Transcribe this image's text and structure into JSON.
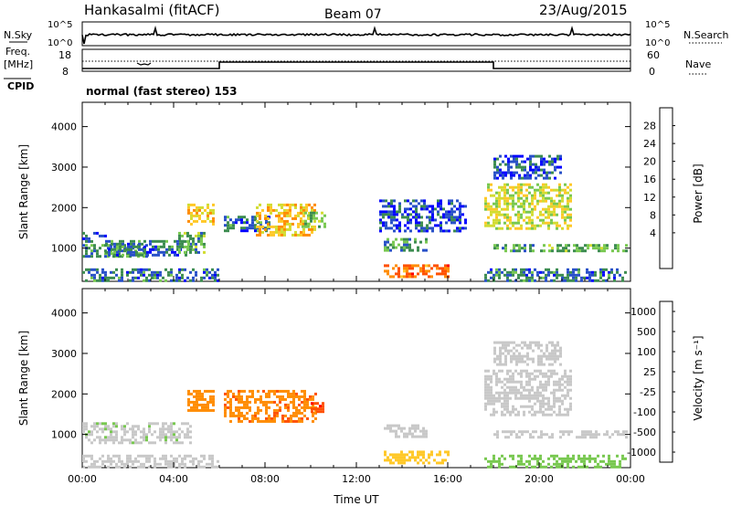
{
  "header": {
    "station": "Hankasalmi (fitACF)",
    "beam": "Beam 07",
    "date": "23/Aug/2015"
  },
  "strips": {
    "nsky_label": "N.Sky",
    "nsky_ticks": [
      "10^5",
      "10^0"
    ],
    "nsearch_label": "N.Search",
    "nsearch_ticks": [
      "10^5",
      "10^0"
    ],
    "freq_label_line1": "Freq.",
    "freq_label_line2": "[MHz]",
    "freq_ticks": [
      "18",
      "8"
    ],
    "nave_label": "Nave",
    "nave_ticks": [
      "60",
      "0"
    ],
    "cpid_label": "CPID",
    "cpid_text": "normal (fast stereo) 153"
  },
  "power_colorbar": {
    "label": "Power [dB]",
    "ticks": [
      "28",
      "24",
      "20",
      "16",
      "12",
      "8",
      "4"
    ],
    "colors": [
      "#0000ff",
      "#2850c8",
      "#3c8c50",
      "#78c850",
      "#d2dc32",
      "#ffc828",
      "#ff8c00",
      "#ff5000",
      "#ff0000"
    ]
  },
  "velocity_colorbar": {
    "label": "Velocity [m s⁻¹]",
    "ticks": [
      "1000",
      "500",
      "100",
      "25",
      "-25",
      "-100",
      "-500",
      "-1000"
    ],
    "colors": [
      "#2850c8",
      "#3c8c50",
      "#78c850",
      "#c8c8c8",
      "#ffc828",
      "#ff8c00",
      "#ff5000",
      "#ff0000"
    ]
  },
  "chart_data": [
    {
      "type": "heatmap",
      "panel": "power",
      "ylabel": "Slant Range [km]",
      "xlabel": "",
      "ylim": [
        180,
        4600
      ],
      "yticks": [
        1000,
        2000,
        3000,
        4000
      ],
      "xlim_hours": [
        0,
        24
      ],
      "regions": [
        {
          "t": [
            0.0,
            6.0
          ],
          "r": [
            180,
            500
          ],
          "value_db": 8
        },
        {
          "t": [
            0.0,
            2.8
          ],
          "r": [
            800,
            1100
          ],
          "value_db": 10
        },
        {
          "t": [
            0.0,
            1.0
          ],
          "r": [
            1150,
            1400
          ],
          "value_db": 6
        },
        {
          "t": [
            1.0,
            4.8
          ],
          "r": [
            800,
            1200
          ],
          "value_db": 8
        },
        {
          "t": [
            4.6,
            5.8
          ],
          "r": [
            1600,
            2100
          ],
          "value_db": 22
        },
        {
          "t": [
            4.2,
            5.4
          ],
          "r": [
            900,
            1400
          ],
          "value_db": 12
        },
        {
          "t": [
            6.2,
            8.2
          ],
          "r": [
            1400,
            1800
          ],
          "value_db": 8
        },
        {
          "t": [
            7.6,
            10.2
          ],
          "r": [
            1300,
            2100
          ],
          "value_db": 22
        },
        {
          "t": [
            9.6,
            10.6
          ],
          "r": [
            1500,
            1900
          ],
          "value_db": 14
        },
        {
          "t": [
            13.2,
            16.0
          ],
          "r": [
            300,
            600
          ],
          "value_db": 28
        },
        {
          "t": [
            13.2,
            15.0
          ],
          "r": [
            950,
            1250
          ],
          "value_db": 10
        },
        {
          "t": [
            13.0,
            16.8
          ],
          "r": [
            1400,
            2200
          ],
          "value_db": 5
        },
        {
          "t": [
            17.6,
            21.4
          ],
          "r": [
            1500,
            2600
          ],
          "value_db": 18
        },
        {
          "t": [
            17.6,
            23.8
          ],
          "r": [
            180,
            500
          ],
          "value_db": 8
        },
        {
          "t": [
            18.0,
            23.8
          ],
          "r": [
            950,
            1100
          ],
          "value_db": 12
        },
        {
          "t": [
            18.0,
            21.0
          ],
          "r": [
            2700,
            3300
          ],
          "value_db": 6
        }
      ]
    },
    {
      "type": "heatmap",
      "panel": "velocity",
      "ylabel": "Slant Range [km]",
      "xlabel": "Time UT",
      "ylim": [
        180,
        4600
      ],
      "yticks": [
        1000,
        2000,
        3000,
        4000
      ],
      "xlim_hours": [
        0,
        24
      ],
      "xticks": [
        "00:00",
        "04:00",
        "08:00",
        "12:00",
        "16:00",
        "20:00",
        "00:00"
      ],
      "regions": [
        {
          "t": [
            0.0,
            6.0
          ],
          "r": [
            180,
            500
          ],
          "value_ms": 0
        },
        {
          "t": [
            0.0,
            4.8
          ],
          "r": [
            800,
            1300
          ],
          "value_ms": 10
        },
        {
          "t": [
            4.6,
            5.8
          ],
          "r": [
            1600,
            2100
          ],
          "value_ms": -300
        },
        {
          "t": [
            6.2,
            10.2
          ],
          "r": [
            1300,
            2100
          ],
          "value_ms": -400
        },
        {
          "t": [
            10.0,
            10.6
          ],
          "r": [
            1500,
            1800
          ],
          "value_ms": -800
        },
        {
          "t": [
            13.2,
            16.0
          ],
          "r": [
            300,
            600
          ],
          "value_ms": -60
        },
        {
          "t": [
            13.2,
            15.0
          ],
          "r": [
            950,
            1250
          ],
          "value_ms": 0
        },
        {
          "t": [
            17.6,
            21.4
          ],
          "r": [
            1500,
            2600
          ],
          "value_ms": 0
        },
        {
          "t": [
            17.6,
            23.8
          ],
          "r": [
            180,
            500
          ],
          "value_ms": 60
        },
        {
          "t": [
            18.0,
            23.8
          ],
          "r": [
            950,
            1100
          ],
          "value_ms": 0
        },
        {
          "t": [
            18.0,
            21.0
          ],
          "r": [
            2700,
            3300
          ],
          "value_ms": 0
        }
      ]
    }
  ]
}
